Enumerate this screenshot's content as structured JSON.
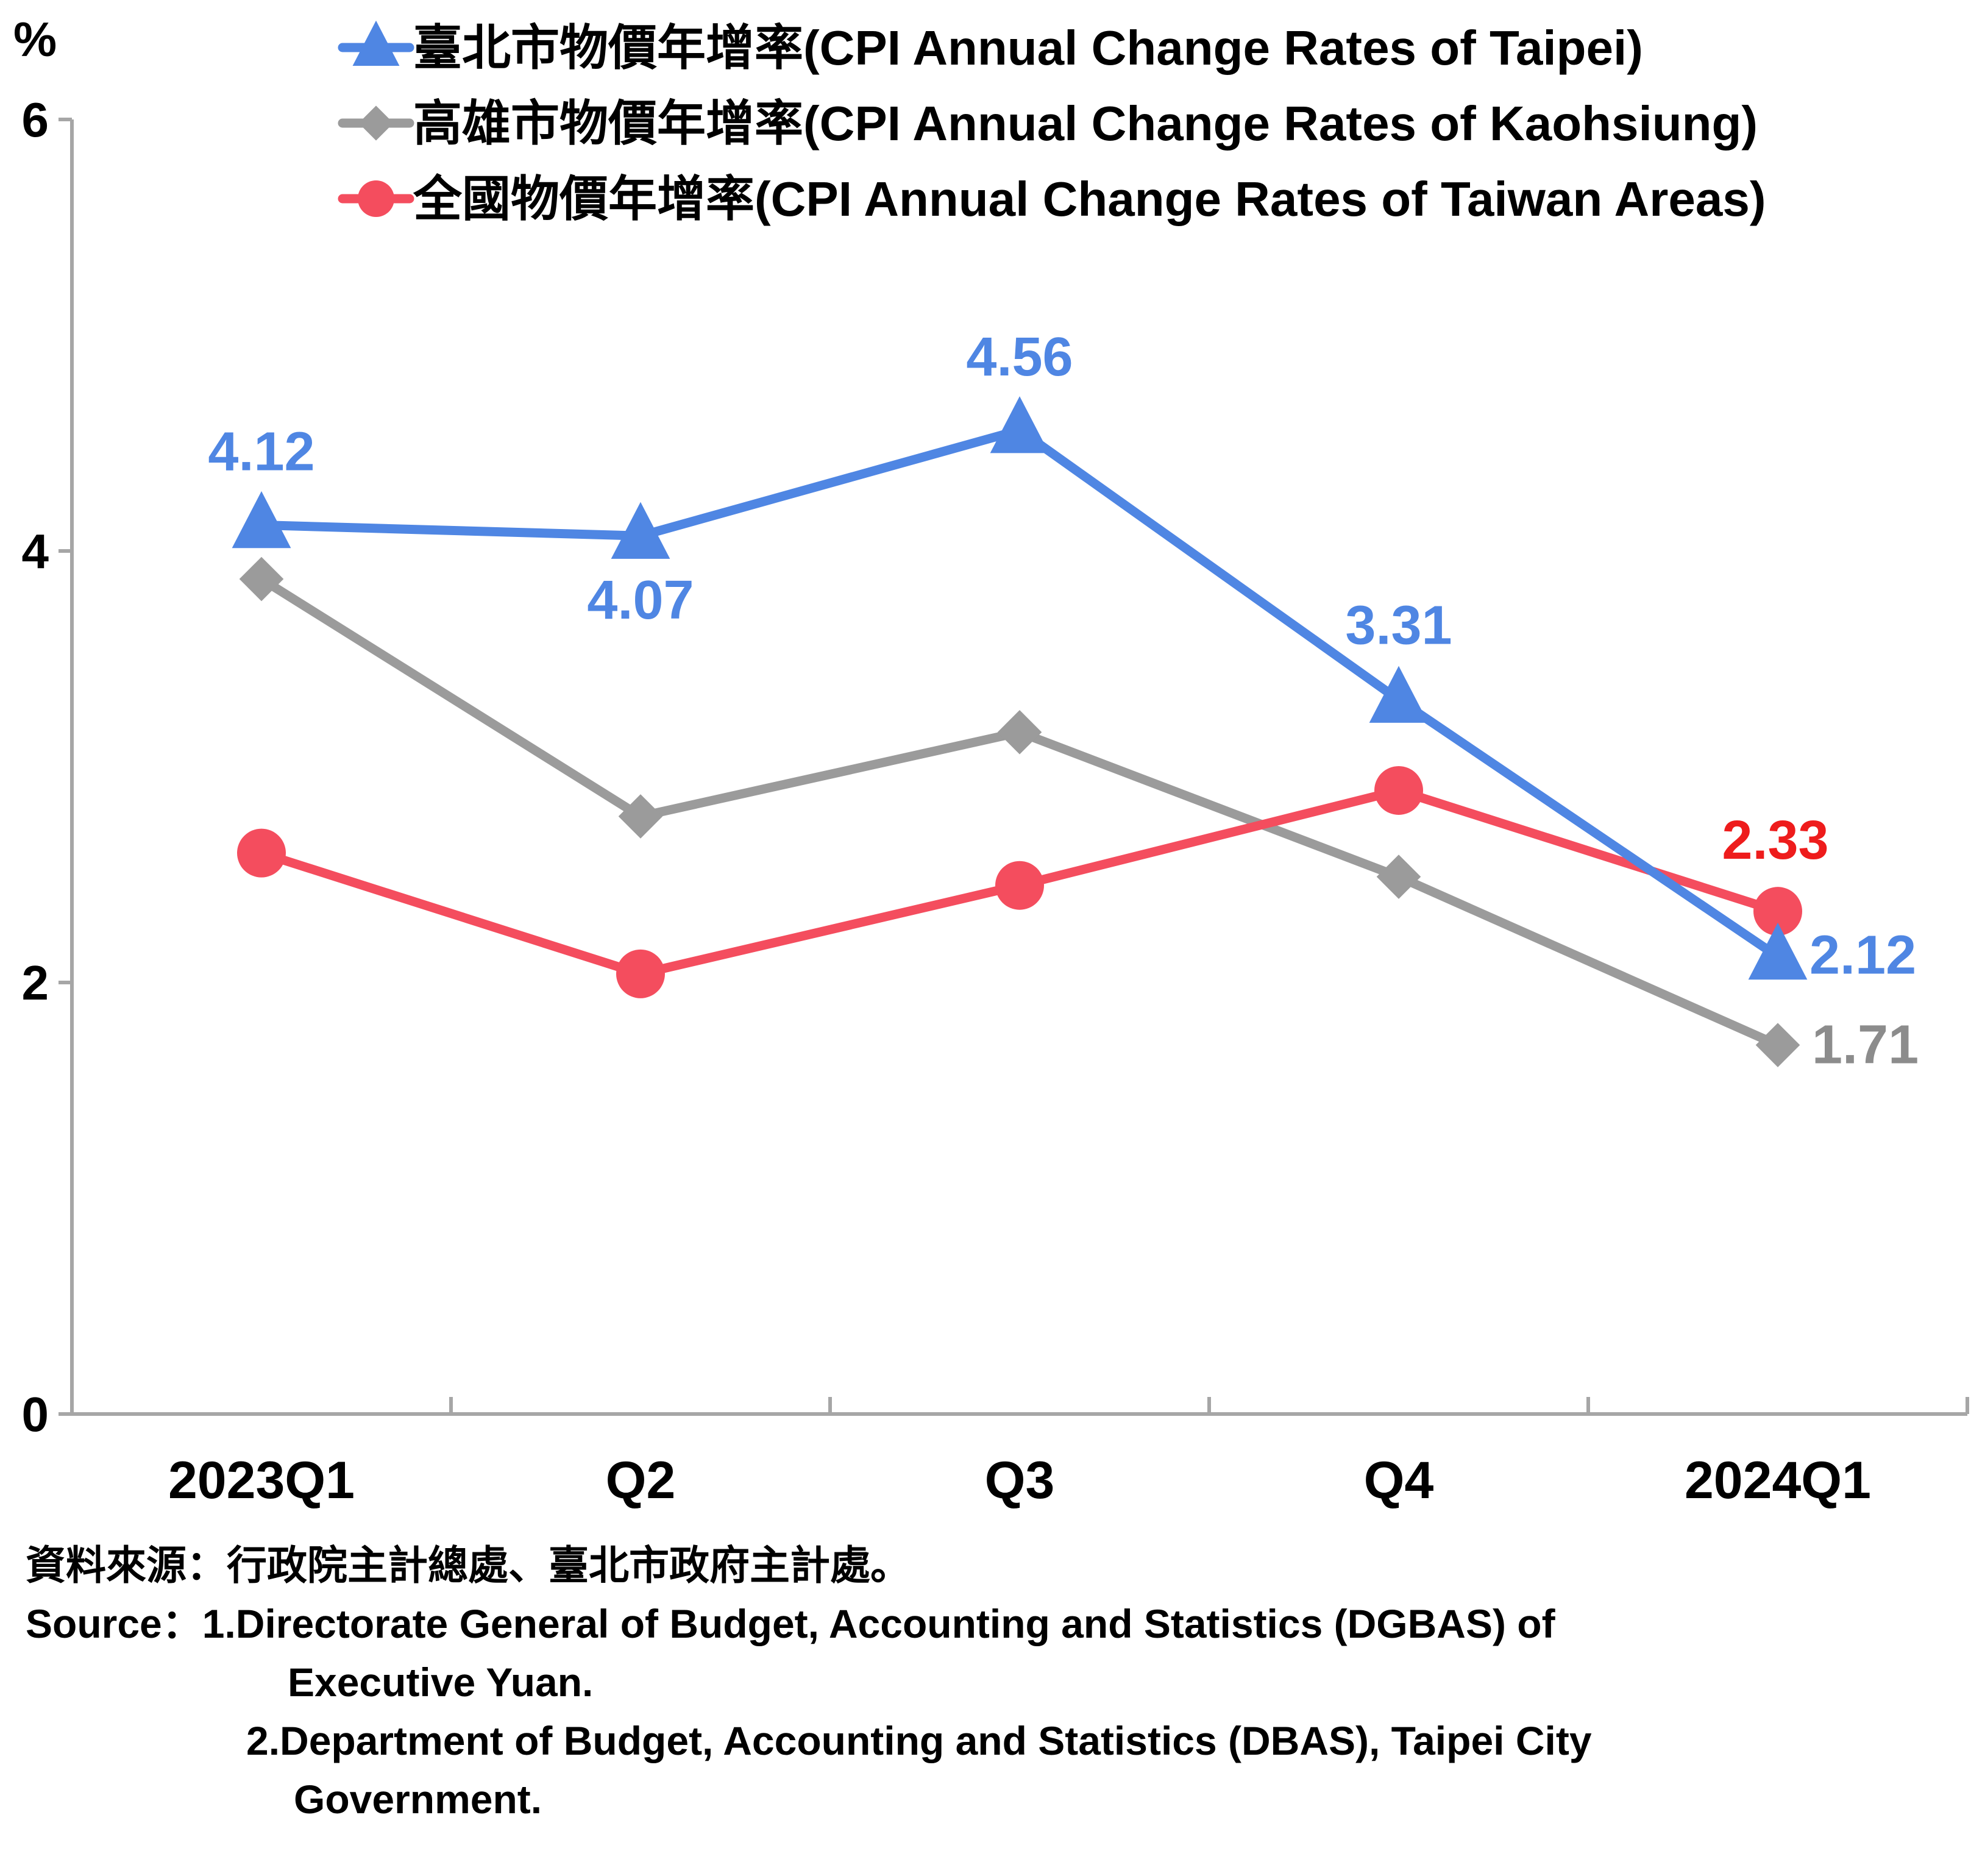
{
  "chart_data": {
    "type": "line",
    "unit_label": "%",
    "categories": [
      "2023Q1",
      "Q2",
      "Q3",
      "Q4",
      "2024Q1"
    ],
    "ylim": [
      0,
      6
    ],
    "yticks": [
      "0",
      "2",
      "4",
      "6"
    ],
    "grid": false,
    "legend_position": "top",
    "series": [
      {
        "name": "臺北市物價年增率(CPI Annual Change Rates of Taipei)",
        "color": "#4f86e3",
        "marker": "triangle",
        "values": [
          4.12,
          4.07,
          4.56,
          3.31,
          2.12
        ],
        "labels": [
          "4.12",
          "4.07",
          "4.56",
          "3.31",
          "2.12"
        ],
        "label_color": "#4f86e3"
      },
      {
        "name": "高雄市物價年增率(CPI Annual Change Rates of Kaohsiung)",
        "color": "#9b9b9b",
        "marker": "diamond",
        "values": [
          3.87,
          2.77,
          3.16,
          2.49,
          1.71
        ],
        "labels": [
          "",
          "",
          "",
          "",
          "1.71"
        ],
        "label_color": "#8c8c8c"
      },
      {
        "name": "全國物價年增率(CPI Annual Change Rates of Taiwan Areas)",
        "color": "#f44d5e",
        "marker": "circle",
        "values": [
          2.6,
          2.04,
          2.45,
          2.89,
          2.33
        ],
        "labels": [
          "",
          "",
          "",
          "",
          "2.33"
        ],
        "label_color": "#ee1c1c"
      }
    ]
  },
  "source": {
    "zh": "資料來源：行政院主計總處、臺北市政府主計處。",
    "en_prefix": "Source：",
    "item1_line1": "1.Directorate General of Budget, Accounting and Statistics (DGBAS) of",
    "item1_line2": "Executive Yuan.",
    "item2_line1": "2.Department of Budget, Accounting and Statistics (DBAS), Taipei City",
    "item2_line2": "Government."
  }
}
